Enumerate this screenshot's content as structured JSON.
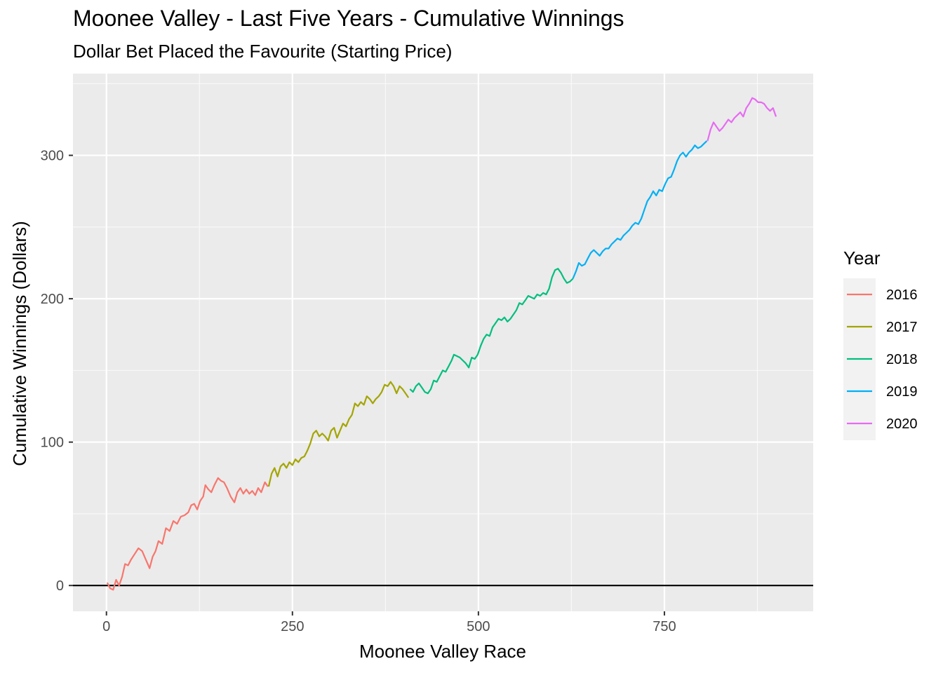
{
  "chart_data": {
    "type": "line",
    "title": "Moonee Valley - Last Five Years - Cumulative Winnings",
    "subtitle": "Dollar Bet Placed the Favourite (Starting Price)",
    "xlabel": "Moonee Valley Race",
    "ylabel": "Cumulative Winnings (Dollars)",
    "xlim": [
      -45,
      950
    ],
    "ylim": [
      -18,
      357
    ],
    "x_ticks": [
      0,
      250,
      500,
      750
    ],
    "y_ticks": [
      0,
      100,
      200,
      300
    ],
    "x_tick_labels": [
      "0",
      "250",
      "500",
      "750"
    ],
    "y_tick_labels": [
      "0",
      "100",
      "200",
      "300"
    ],
    "grid": true,
    "reference_line_y": 0,
    "legend_title": "Year",
    "legend_position": "right",
    "series": [
      {
        "name": "2016",
        "color": "#F8766D",
        "points": [
          [
            1,
            2
          ],
          [
            5,
            -2
          ],
          [
            9,
            -3
          ],
          [
            13,
            4
          ],
          [
            17,
            0
          ],
          [
            21,
            6
          ],
          [
            25,
            15
          ],
          [
            29,
            14
          ],
          [
            33,
            18
          ],
          [
            38,
            22
          ],
          [
            43,
            26
          ],
          [
            48,
            24
          ],
          [
            53,
            18
          ],
          [
            58,
            12
          ],
          [
            62,
            20
          ],
          [
            66,
            24
          ],
          [
            70,
            31
          ],
          [
            75,
            29
          ],
          [
            80,
            40
          ],
          [
            85,
            38
          ],
          [
            90,
            45
          ],
          [
            95,
            43
          ],
          [
            100,
            48
          ],
          [
            105,
            49
          ],
          [
            110,
            51
          ],
          [
            114,
            56
          ],
          [
            118,
            57
          ],
          [
            122,
            53
          ],
          [
            126,
            59
          ],
          [
            130,
            62
          ],
          [
            133,
            70
          ],
          [
            137,
            67
          ],
          [
            141,
            65
          ],
          [
            145,
            70
          ],
          [
            150,
            75
          ],
          [
            154,
            73
          ],
          [
            158,
            72
          ],
          [
            162,
            68
          ],
          [
            167,
            62
          ],
          [
            172,
            58
          ],
          [
            176,
            65
          ],
          [
            180,
            68
          ],
          [
            184,
            64
          ],
          [
            188,
            67
          ],
          [
            192,
            64
          ],
          [
            196,
            66
          ],
          [
            200,
            63
          ],
          [
            204,
            68
          ],
          [
            208,
            65
          ],
          [
            213,
            72
          ],
          [
            217,
            69
          ]
        ]
      },
      {
        "name": "2017",
        "color": "#A3A500",
        "points": [
          [
            218,
            69
          ],
          [
            222,
            78
          ],
          [
            226,
            82
          ],
          [
            230,
            76
          ],
          [
            234,
            83
          ],
          [
            238,
            85
          ],
          [
            242,
            82
          ],
          [
            246,
            86
          ],
          [
            250,
            84
          ],
          [
            254,
            88
          ],
          [
            258,
            86
          ],
          [
            262,
            89
          ],
          [
            266,
            90
          ],
          [
            270,
            94
          ],
          [
            274,
            99
          ],
          [
            278,
            106
          ],
          [
            282,
            108
          ],
          [
            286,
            104
          ],
          [
            290,
            106
          ],
          [
            294,
            104
          ],
          [
            298,
            101
          ],
          [
            302,
            108
          ],
          [
            306,
            110
          ],
          [
            310,
            103
          ],
          [
            314,
            108
          ],
          [
            318,
            113
          ],
          [
            322,
            111
          ],
          [
            326,
            116
          ],
          [
            330,
            119
          ],
          [
            334,
            127
          ],
          [
            338,
            125
          ],
          [
            342,
            128
          ],
          [
            346,
            126
          ],
          [
            350,
            132
          ],
          [
            354,
            130
          ],
          [
            358,
            127
          ],
          [
            362,
            130
          ],
          [
            366,
            132
          ],
          [
            370,
            135
          ],
          [
            374,
            140
          ],
          [
            378,
            139
          ],
          [
            382,
            142
          ],
          [
            386,
            139
          ],
          [
            390,
            134
          ],
          [
            394,
            139
          ],
          [
            398,
            137
          ],
          [
            402,
            134
          ],
          [
            406,
            131
          ]
        ]
      },
      {
        "name": "2018",
        "color": "#00BF7D",
        "points": [
          [
            408,
            137
          ],
          [
            412,
            135
          ],
          [
            416,
            139
          ],
          [
            420,
            141
          ],
          [
            424,
            138
          ],
          [
            428,
            135
          ],
          [
            432,
            134
          ],
          [
            436,
            137
          ],
          [
            440,
            143
          ],
          [
            444,
            142
          ],
          [
            448,
            146
          ],
          [
            452,
            150
          ],
          [
            456,
            149
          ],
          [
            460,
            153
          ],
          [
            464,
            157
          ],
          [
            467,
            161
          ],
          [
            471,
            160
          ],
          [
            475,
            159
          ],
          [
            479,
            157
          ],
          [
            483,
            155
          ],
          [
            487,
            152
          ],
          [
            491,
            159
          ],
          [
            495,
            158
          ],
          [
            499,
            161
          ],
          [
            503,
            167
          ],
          [
            507,
            172
          ],
          [
            511,
            175
          ],
          [
            515,
            174
          ],
          [
            519,
            180
          ],
          [
            523,
            183
          ],
          [
            527,
            186
          ],
          [
            531,
            185
          ],
          [
            535,
            187
          ],
          [
            539,
            184
          ],
          [
            543,
            186
          ],
          [
            547,
            189
          ],
          [
            551,
            192
          ],
          [
            555,
            197
          ],
          [
            559,
            196
          ],
          [
            563,
            199
          ],
          [
            567,
            202
          ],
          [
            571,
            201
          ],
          [
            575,
            200
          ],
          [
            579,
            203
          ],
          [
            583,
            202
          ],
          [
            587,
            204
          ],
          [
            591,
            203
          ],
          [
            595,
            207
          ],
          [
            599,
            215
          ],
          [
            603,
            220
          ],
          [
            607,
            221
          ],
          [
            611,
            218
          ],
          [
            615,
            214
          ],
          [
            619,
            211
          ],
          [
            623,
            212
          ],
          [
            627,
            214
          ]
        ]
      },
      {
        "name": "2019",
        "color": "#00B0F6",
        "points": [
          [
            627,
            214
          ],
          [
            631,
            219
          ],
          [
            635,
            225
          ],
          [
            639,
            223
          ],
          [
            643,
            224
          ],
          [
            647,
            228
          ],
          [
            651,
            232
          ],
          [
            655,
            234
          ],
          [
            659,
            232
          ],
          [
            663,
            230
          ],
          [
            667,
            233
          ],
          [
            671,
            235
          ],
          [
            675,
            235
          ],
          [
            679,
            238
          ],
          [
            683,
            240
          ],
          [
            687,
            242
          ],
          [
            691,
            241
          ],
          [
            695,
            244
          ],
          [
            699,
            246
          ],
          [
            703,
            248
          ],
          [
            707,
            251
          ],
          [
            711,
            253
          ],
          [
            715,
            252
          ],
          [
            719,
            256
          ],
          [
            723,
            262
          ],
          [
            727,
            268
          ],
          [
            731,
            271
          ],
          [
            735,
            275
          ],
          [
            739,
            272
          ],
          [
            743,
            276
          ],
          [
            747,
            275
          ],
          [
            751,
            280
          ],
          [
            755,
            284
          ],
          [
            759,
            285
          ],
          [
            763,
            290
          ],
          [
            767,
            296
          ],
          [
            771,
            300
          ],
          [
            775,
            302
          ],
          [
            779,
            299
          ],
          [
            783,
            302
          ],
          [
            787,
            304
          ],
          [
            791,
            307
          ],
          [
            795,
            305
          ],
          [
            799,
            306
          ],
          [
            803,
            308
          ],
          [
            807,
            310
          ]
        ]
      },
      {
        "name": "2020",
        "color": "#E76BF3",
        "points": [
          [
            808,
            310
          ],
          [
            812,
            318
          ],
          [
            816,
            323
          ],
          [
            820,
            320
          ],
          [
            824,
            317
          ],
          [
            828,
            319
          ],
          [
            832,
            322
          ],
          [
            836,
            325
          ],
          [
            840,
            323
          ],
          [
            844,
            326
          ],
          [
            848,
            328
          ],
          [
            852,
            330
          ],
          [
            856,
            327
          ],
          [
            860,
            333
          ],
          [
            864,
            336
          ],
          [
            868,
            340
          ],
          [
            872,
            339
          ],
          [
            876,
            337
          ],
          [
            880,
            337
          ],
          [
            884,
            336
          ],
          [
            888,
            333
          ],
          [
            892,
            331
          ],
          [
            896,
            333
          ],
          [
            900,
            327
          ]
        ]
      }
    ]
  }
}
